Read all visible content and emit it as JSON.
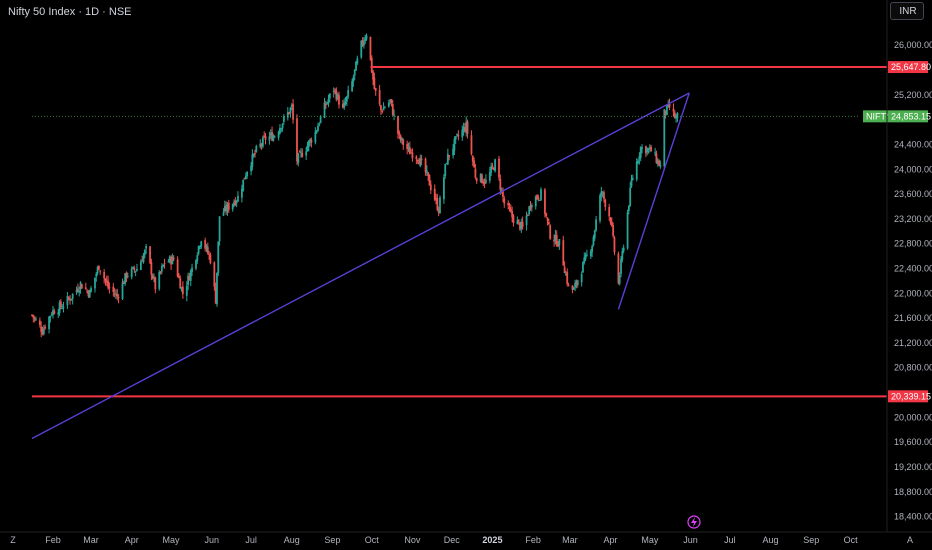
{
  "header": {
    "title": "Nifty 50 Index · 1D · NSE",
    "currency": "INR"
  },
  "corner_left": "Z",
  "corner_right": "A",
  "colors": {
    "background": "#000000",
    "up": "#26a69a",
    "down": "#ef5350",
    "trendline": "#5b3fd8",
    "level_line": "#f23645",
    "last_price": "#4caf50",
    "dotted_price": "#4caf50",
    "flash_icon": "#e040fb"
  },
  "icons": {
    "snapshot": "lightning-icon"
  },
  "chart_data": {
    "type": "candlestick",
    "title": "Nifty 50 Index · 1D · NSE",
    "symbol": "NIFTY",
    "ylim": [
      18200,
      26600
    ],
    "y_ticks": [
      {
        "value": 26000,
        "label": "26,000.00"
      },
      {
        "value": 25200,
        "label": "25,200.00"
      },
      {
        "value": 24400,
        "label": "24,400.00"
      },
      {
        "value": 24000,
        "label": "24,000.00"
      },
      {
        "value": 23600,
        "label": "23,600.00"
      },
      {
        "value": 23200,
        "label": "23,200.00"
      },
      {
        "value": 22800,
        "label": "22,800.00"
      },
      {
        "value": 22400,
        "label": "22,400.00"
      },
      {
        "value": 22000,
        "label": "22,000.00"
      },
      {
        "value": 21600,
        "label": "21,600.00"
      },
      {
        "value": 21200,
        "label": "21,200.00"
      },
      {
        "value": 20800,
        "label": "20,800.00"
      },
      {
        "value": 20000,
        "label": "20,000.00"
      },
      {
        "value": 19600,
        "label": "19,600.00"
      },
      {
        "value": 19200,
        "label": "19,200.00"
      },
      {
        "value": 18800,
        "label": "18,800.00"
      },
      {
        "value": 18400,
        "label": "18,400.00"
      }
    ],
    "x_ticks": [
      {
        "date": "2024-02-01",
        "label": "Feb"
      },
      {
        "date": "2024-03-01",
        "label": "Mar"
      },
      {
        "date": "2024-04-01",
        "label": "Apr"
      },
      {
        "date": "2024-05-01",
        "label": "May"
      },
      {
        "date": "2024-06-01",
        "label": "Jun"
      },
      {
        "date": "2024-07-01",
        "label": "Jul"
      },
      {
        "date": "2024-08-01",
        "label": "Aug"
      },
      {
        "date": "2024-09-01",
        "label": "Sep"
      },
      {
        "date": "2024-10-01",
        "label": "Oct"
      },
      {
        "date": "2024-11-01",
        "label": "Nov"
      },
      {
        "date": "2024-12-01",
        "label": "Dec"
      },
      {
        "date": "2025-01-01",
        "label": "2025",
        "bold": true
      },
      {
        "date": "2025-02-01",
        "label": "Feb"
      },
      {
        "date": "2025-03-01",
        "label": "Mar"
      },
      {
        "date": "2025-04-01",
        "label": "Apr"
      },
      {
        "date": "2025-05-01",
        "label": "May"
      },
      {
        "date": "2025-06-01",
        "label": "Jun"
      },
      {
        "date": "2025-07-01",
        "label": "Jul"
      },
      {
        "date": "2025-08-01",
        "label": "Aug"
      },
      {
        "date": "2025-09-01",
        "label": "Sep"
      },
      {
        "date": "2025-10-01",
        "label": "Oct"
      }
    ],
    "x_range": [
      "2024-01-16",
      "2025-10-28"
    ],
    "price_levels": [
      {
        "value": 25647.8,
        "label": "25,647.80",
        "from": "2024-09-30"
      },
      {
        "value": 20339.15,
        "label": "20,339.15",
        "from": "2024-01-16"
      }
    ],
    "last_price": {
      "symbol": "NIFTY",
      "value": 24853.15,
      "label": "24,853.15"
    },
    "trendlines": [
      {
        "from": {
          "date": "2024-01-16",
          "value": 19660
        },
        "to": {
          "date": "2025-05-31",
          "value": 25230
        }
      },
      {
        "from": {
          "date": "2025-04-07",
          "value": 21740
        },
        "to": {
          "date": "2025-05-31",
          "value": 25230
        }
      }
    ],
    "price_path": [
      [
        "2024-01-16",
        21650
      ],
      [
        "2024-01-24",
        21400
      ],
      [
        "2024-01-31",
        21700
      ],
      [
        "2024-02-08",
        21800
      ],
      [
        "2024-02-15",
        21950
      ],
      [
        "2024-02-22",
        22150
      ],
      [
        "2024-02-29",
        22000
      ],
      [
        "2024-03-07",
        22450
      ],
      [
        "2024-03-14",
        22100
      ],
      [
        "2024-03-21",
        21950
      ],
      [
        "2024-03-28",
        22300
      ],
      [
        "2024-04-05",
        22400
      ],
      [
        "2024-04-12",
        22700
      ],
      [
        "2024-04-19",
        22100
      ],
      [
        "2024-04-26",
        22500
      ],
      [
        "2024-05-03",
        22550
      ],
      [
        "2024-05-10",
        22000
      ],
      [
        "2024-05-17",
        22400
      ],
      [
        "2024-05-24",
        22900
      ],
      [
        "2024-05-31",
        22550
      ],
      [
        "2024-06-04",
        21900
      ],
      [
        "2024-06-07",
        23250
      ],
      [
        "2024-06-14",
        23400
      ],
      [
        "2024-06-21",
        23550
      ],
      [
        "2024-06-28",
        24000
      ],
      [
        "2024-07-05",
        24300
      ],
      [
        "2024-07-12",
        24500
      ],
      [
        "2024-07-19",
        24550
      ],
      [
        "2024-07-26",
        24800
      ],
      [
        "2024-08-01",
        25000
      ],
      [
        "2024-08-05",
        24150
      ],
      [
        "2024-08-12",
        24350
      ],
      [
        "2024-08-19",
        24600
      ],
      [
        "2024-08-26",
        25000
      ],
      [
        "2024-09-02",
        25300
      ],
      [
        "2024-09-09",
        24950
      ],
      [
        "2024-09-16",
        25400
      ],
      [
        "2024-09-23",
        26000
      ],
      [
        "2024-09-27",
        26200
      ],
      [
        "2024-10-03",
        25300
      ],
      [
        "2024-10-08",
        24950
      ],
      [
        "2024-10-15",
        25100
      ],
      [
        "2024-10-22",
        24500
      ],
      [
        "2024-10-29",
        24300
      ],
      [
        "2024-11-05",
        24200
      ],
      [
        "2024-11-12",
        23900
      ],
      [
        "2024-11-21",
        23350
      ],
      [
        "2024-11-27",
        24150
      ],
      [
        "2024-12-05",
        24500
      ],
      [
        "2024-12-12",
        24700
      ],
      [
        "2024-12-19",
        23900
      ],
      [
        "2024-12-27",
        23800
      ],
      [
        "2025-01-03",
        24100
      ],
      [
        "2025-01-10",
        23450
      ],
      [
        "2025-01-17",
        23200
      ],
      [
        "2025-01-24",
        23050
      ],
      [
        "2025-01-31",
        23500
      ],
      [
        "2025-02-07",
        23600
      ],
      [
        "2025-02-14",
        22950
      ],
      [
        "2025-02-21",
        22800
      ],
      [
        "2025-02-28",
        22100
      ],
      [
        "2025-03-04",
        22050
      ],
      [
        "2025-03-11",
        22450
      ],
      [
        "2025-03-18",
        22800
      ],
      [
        "2025-03-25",
        23650
      ],
      [
        "2025-04-01",
        23200
      ],
      [
        "2025-04-07",
        22150
      ],
      [
        "2025-04-11",
        22800
      ],
      [
        "2025-04-17",
        23800
      ],
      [
        "2025-04-24",
        24350
      ],
      [
        "2025-05-02",
        24300
      ],
      [
        "2025-05-09",
        24050
      ],
      [
        "2025-05-12",
        24900
      ],
      [
        "2025-05-16",
        25000
      ],
      [
        "2025-05-21",
        24800
      ],
      [
        "2025-05-23",
        24900
      ]
    ]
  }
}
